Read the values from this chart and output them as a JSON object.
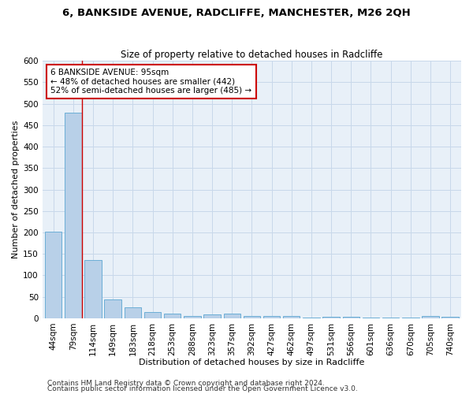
{
  "title": "6, BANKSIDE AVENUE, RADCLIFFE, MANCHESTER, M26 2QH",
  "subtitle": "Size of property relative to detached houses in Radcliffe",
  "xlabel": "Distribution of detached houses by size in Radcliffe",
  "ylabel": "Number of detached properties",
  "footnote1": "Contains HM Land Registry data © Crown copyright and database right 2024.",
  "footnote2": "Contains public sector information licensed under the Open Government Licence v3.0.",
  "bin_labels": [
    "44sqm",
    "79sqm",
    "114sqm",
    "149sqm",
    "183sqm",
    "218sqm",
    "253sqm",
    "288sqm",
    "323sqm",
    "357sqm",
    "392sqm",
    "427sqm",
    "462sqm",
    "497sqm",
    "531sqm",
    "566sqm",
    "601sqm",
    "636sqm",
    "670sqm",
    "705sqm",
    "740sqm"
  ],
  "bar_values": [
    202,
    480,
    135,
    43,
    25,
    15,
    11,
    6,
    9,
    10,
    6,
    6,
    5,
    1,
    4,
    4,
    1,
    2,
    1,
    5,
    4
  ],
  "bar_color": "#b8d0e8",
  "bar_edge_color": "#6baed6",
  "grid_color": "#c8d8ea",
  "background_color": "#e8f0f8",
  "red_line_x": 1.45,
  "annotation_line1": "6 BANKSIDE AVENUE: 95sqm",
  "annotation_line2": "← 48% of detached houses are smaller (442)",
  "annotation_line3": "52% of semi-detached houses are larger (485) →",
  "annotation_box_color": "#ffffff",
  "annotation_border_color": "#cc0000",
  "ylim": [
    0,
    600
  ],
  "yticks": [
    0,
    50,
    100,
    150,
    200,
    250,
    300,
    350,
    400,
    450,
    500,
    550,
    600
  ],
  "title_fontsize": 9.5,
  "subtitle_fontsize": 8.5,
  "ylabel_fontsize": 8,
  "xlabel_fontsize": 8,
  "tick_fontsize": 7.5,
  "annotation_fontsize": 7.5,
  "footnote_fontsize": 6.5
}
